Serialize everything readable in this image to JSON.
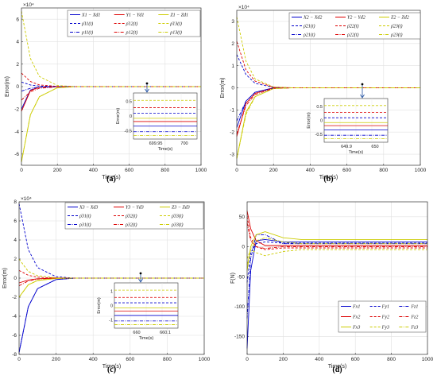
{
  "chart_data": [
    {
      "type": "line",
      "title": "(a)",
      "xlabel": "Time(s)",
      "ylabel": "Error(m)",
      "xlim": [
        0,
        1000
      ],
      "ylim": [
        -70000,
        70000
      ],
      "yexponent": "×10⁴",
      "xticks": [
        0,
        200,
        400,
        600,
        800,
        1000
      ],
      "yticks": [
        -6,
        -4,
        -2,
        0,
        2,
        4,
        6
      ],
      "grid": true,
      "legend_position": "top",
      "series": [
        {
          "name": "X1 − Xd1",
          "color": "#0000cc",
          "style": "solid",
          "x": [
            0,
            50,
            100,
            200,
            300,
            1000
          ],
          "y": [
            -20000,
            -3000,
            -500,
            0,
            0,
            0
          ]
        },
        {
          "name": "Y1 − Yd1",
          "color": "#dd0000",
          "style": "solid",
          "x": [
            0,
            50,
            100,
            200,
            300,
            1000
          ],
          "y": [
            -22000,
            -3500,
            -500,
            0,
            0,
            0
          ]
        },
        {
          "name": "Z1 − Zd1",
          "color": "#cccc00",
          "style": "solid",
          "x": [
            0,
            50,
            100,
            200,
            300,
            1000
          ],
          "y": [
            -67000,
            -25000,
            -9000,
            -1000,
            0,
            0
          ]
        },
        {
          "name": "ρ̄11(t)",
          "color": "#0000cc",
          "style": "dashed",
          "x": [
            0,
            50,
            100,
            200,
            300,
            1000
          ],
          "y": [
            4000,
            1500,
            500,
            0,
            0,
            0
          ]
        },
        {
          "name": "ρ̄12(t)",
          "color": "#dd0000",
          "style": "dashed",
          "x": [
            0,
            50,
            100,
            200,
            300,
            1000
          ],
          "y": [
            12000,
            4500,
            1500,
            200,
            0,
            0
          ]
        },
        {
          "name": "ρ̄13(t)",
          "color": "#cccc00",
          "style": "dashed",
          "x": [
            0,
            50,
            100,
            200,
            300,
            1000
          ],
          "y": [
            67000,
            25000,
            9000,
            1000,
            0,
            0
          ]
        },
        {
          "name": "ρ11(t)",
          "color": "#0000cc",
          "style": "dashdot",
          "x": [
            0,
            50,
            100,
            200,
            300,
            1000
          ],
          "y": [
            -4000,
            -1500,
            -500,
            0,
            0,
            0
          ]
        },
        {
          "name": "ρ12(t)",
          "color": "#dd0000",
          "style": "dashdot",
          "x": [
            0,
            50,
            100,
            200,
            300,
            1000
          ],
          "y": [
            -12000,
            -4500,
            -1500,
            -200,
            0,
            0
          ]
        },
        {
          "name": "ρ13(t)",
          "color": "#cccc00",
          "style": "dashdot",
          "x": [
            0,
            50,
            100,
            200,
            300,
            1000
          ],
          "y": [
            -67000,
            -25000,
            -9000,
            -1000,
            0,
            0
          ]
        }
      ],
      "inset": {
        "ylabel": "Error(m)",
        "xlabel": "Time(s)",
        "xticks": [
          "699.95",
          "700"
        ],
        "yticks": [
          "0.5",
          "0",
          "-0.5"
        ]
      }
    },
    {
      "type": "line",
      "title": "(b)",
      "xlabel": "Time(s)",
      "ylabel": "Error(m)",
      "xlim": [
        0,
        1000
      ],
      "ylim": [
        -35000,
        35000
      ],
      "yexponent": "×10⁴",
      "xticks": [
        0,
        200,
        400,
        600,
        800,
        1000
      ],
      "yticks": [
        -3,
        -2,
        -1,
        0,
        1,
        2,
        3
      ],
      "grid": true,
      "legend_position": "top",
      "series": [
        {
          "name": "X2 − Xd2",
          "color": "#0000cc",
          "style": "solid",
          "x": [
            0,
            50,
            100,
            200,
            300,
            1000
          ],
          "y": [
            -18000,
            -6000,
            -2000,
            0,
            0,
            0
          ]
        },
        {
          "name": "Y2 − Yd2",
          "color": "#dd0000",
          "style": "solid",
          "x": [
            0,
            50,
            100,
            200,
            300,
            1000
          ],
          "y": [
            -22000,
            -7000,
            -2500,
            0,
            0,
            0
          ]
        },
        {
          "name": "Z2 − Zd2",
          "color": "#cccc00",
          "style": "solid",
          "x": [
            0,
            50,
            100,
            200,
            300,
            1000
          ],
          "y": [
            -32000,
            -11000,
            -4000,
            -300,
            0,
            0
          ]
        },
        {
          "name": "ρ̄21(t)",
          "color": "#0000cc",
          "style": "dashed",
          "x": [
            0,
            50,
            100,
            200,
            300,
            1000
          ],
          "y": [
            15000,
            6000,
            2000,
            200,
            0,
            0
          ]
        },
        {
          "name": "ρ̄22(t)",
          "color": "#dd0000",
          "style": "dashed",
          "x": [
            0,
            50,
            100,
            200,
            300,
            1000
          ],
          "y": [
            21000,
            8000,
            3000,
            300,
            0,
            0
          ]
        },
        {
          "name": "ρ̄23(t)",
          "color": "#cccc00",
          "style": "dashed",
          "x": [
            0,
            50,
            100,
            200,
            300,
            1000
          ],
          "y": [
            32000,
            12000,
            4000,
            400,
            0,
            0
          ]
        },
        {
          "name": "ρ21(t)",
          "color": "#0000cc",
          "style": "dashdot",
          "x": [
            0,
            50,
            100,
            200,
            300,
            1000
          ],
          "y": [
            -15000,
            -6000,
            -2000,
            -200,
            0,
            0
          ]
        },
        {
          "name": "ρ22(t)",
          "color": "#dd0000",
          "style": "dashdot",
          "x": [
            0,
            50,
            100,
            200,
            300,
            1000
          ],
          "y": [
            -21000,
            -8000,
            -3000,
            -300,
            0,
            0
          ]
        },
        {
          "name": "ρ23(t)",
          "color": "#cccc00",
          "style": "dashdot",
          "x": [
            0,
            50,
            100,
            200,
            300,
            1000
          ],
          "y": [
            -32000,
            -12000,
            -4000,
            -400,
            0,
            0
          ]
        }
      ],
      "inset": {
        "ylabel": "Error(m)",
        "xlabel": "Time(s)",
        "xticks": [
          "649.9",
          "650"
        ],
        "yticks": [
          "0.5",
          "0",
          "-0.5"
        ]
      }
    },
    {
      "type": "line",
      "title": "(c)",
      "xlabel": "Time(s)",
      "ylabel": "Error(m)",
      "xlim": [
        0,
        1000
      ],
      "ylim": [
        -80000,
        80000
      ],
      "yexponent": "×10⁴",
      "xticks": [
        0,
        200,
        400,
        600,
        800,
        1000
      ],
      "yticks": [
        -8,
        -6,
        -4,
        -2,
        0,
        2,
        4,
        6,
        8
      ],
      "grid": true,
      "legend_position": "top",
      "series": [
        {
          "name": "X3 − Xd3",
          "color": "#0000cc",
          "style": "solid",
          "x": [
            0,
            50,
            100,
            200,
            300,
            1000
          ],
          "y": [
            -78000,
            -30000,
            -11000,
            -1500,
            0,
            0
          ]
        },
        {
          "name": "Y3 − Yd3",
          "color": "#dd0000",
          "style": "solid",
          "x": [
            0,
            50,
            100,
            200,
            300,
            1000
          ],
          "y": [
            -5000,
            -2000,
            -700,
            0,
            0,
            0
          ]
        },
        {
          "name": "Z3 − Zd3",
          "color": "#cccc00",
          "style": "solid",
          "x": [
            0,
            50,
            100,
            200,
            300,
            1000
          ],
          "y": [
            -20000,
            -7000,
            -2500,
            -300,
            0,
            0
          ]
        },
        {
          "name": "ρ̄31(t)",
          "color": "#0000cc",
          "style": "dashed",
          "x": [
            0,
            50,
            100,
            200,
            300,
            1000
          ],
          "y": [
            78000,
            30000,
            11000,
            1500,
            0,
            0
          ]
        },
        {
          "name": "ρ̄32(t)",
          "color": "#dd0000",
          "style": "dashed",
          "x": [
            0,
            50,
            100,
            200,
            300,
            1000
          ],
          "y": [
            8000,
            3000,
            1000,
            100,
            0,
            0
          ]
        },
        {
          "name": "ρ̄33(t)",
          "color": "#cccc00",
          "style": "dashed",
          "x": [
            0,
            50,
            100,
            200,
            300,
            1000
          ],
          "y": [
            20000,
            7000,
            2500,
            300,
            0,
            0
          ]
        },
        {
          "name": "ρ31(t)",
          "color": "#0000cc",
          "style": "dashdot",
          "x": [
            0,
            50,
            100,
            200,
            300,
            1000
          ],
          "y": [
            -78000,
            -30000,
            -11000,
            -1500,
            0,
            0
          ]
        },
        {
          "name": "ρ32(t)",
          "color": "#dd0000",
          "style": "dashdot",
          "x": [
            0,
            50,
            100,
            200,
            300,
            1000
          ],
          "y": [
            -8000,
            -3000,
            -1000,
            -100,
            0,
            0
          ]
        },
        {
          "name": "ρ33(t)",
          "color": "#cccc00",
          "style": "dashdot",
          "x": [
            0,
            50,
            100,
            200,
            300,
            1000
          ],
          "y": [
            -20000,
            -7000,
            -2500,
            -300,
            0,
            0
          ]
        }
      ],
      "inset": {
        "ylabel": "Error(m)",
        "xlabel": "Time(s)",
        "xticks": [
          "660",
          "660.1"
        ],
        "yticks": [
          "1",
          "0",
          "-1"
        ]
      }
    },
    {
      "type": "line",
      "title": "(d)",
      "xlabel": "Time(s)",
      "ylabel": "F(N)",
      "xlim": [
        0,
        1000
      ],
      "ylim": [
        -180,
        75
      ],
      "xticks": [
        0,
        200,
        400,
        600,
        800,
        1000
      ],
      "yticks": [
        -150,
        -100,
        -50,
        0,
        50
      ],
      "grid": true,
      "legend_position": "bottom-right",
      "series": [
        {
          "name": "Fx1",
          "color": "#0000cc",
          "style": "solid",
          "x": [
            0,
            20,
            50,
            100,
            200,
            300,
            1000
          ],
          "y": [
            -170,
            -40,
            10,
            12,
            8,
            8,
            8
          ]
        },
        {
          "name": "Fy1",
          "color": "#0000cc",
          "style": "dashed",
          "x": [
            0,
            20,
            50,
            100,
            200,
            300,
            1000
          ],
          "y": [
            -60,
            -10,
            5,
            8,
            6,
            6,
            6
          ]
        },
        {
          "name": "Fz1",
          "color": "#0000cc",
          "style": "dashdot",
          "x": [
            0,
            20,
            50,
            100,
            200,
            300,
            1000
          ],
          "y": [
            -120,
            -20,
            20,
            20,
            5,
            5,
            5
          ]
        },
        {
          "name": "Fx2",
          "color": "#dd0000",
          "style": "solid",
          "x": [
            0,
            20,
            50,
            100,
            200,
            300,
            1000
          ],
          "y": [
            60,
            30,
            10,
            2,
            2,
            2,
            2
          ]
        },
        {
          "name": "Fy2",
          "color": "#dd0000",
          "style": "dashed",
          "x": [
            0,
            20,
            50,
            100,
            200,
            300,
            1000
          ],
          "y": [
            50,
            15,
            0,
            -5,
            -2,
            -2,
            -2
          ]
        },
        {
          "name": "Fz2",
          "color": "#dd0000",
          "style": "dashdot",
          "x": [
            0,
            20,
            50,
            100,
            200,
            300,
            1000
          ],
          "y": [
            40,
            10,
            0,
            -3,
            0,
            0,
            0
          ]
        },
        {
          "name": "Fx3",
          "color": "#cccc00",
          "style": "solid",
          "x": [
            0,
            20,
            50,
            100,
            200,
            300,
            1000
          ],
          "y": [
            -40,
            0,
            20,
            25,
            15,
            12,
            12
          ]
        },
        {
          "name": "Fy3",
          "color": "#cccc00",
          "style": "dashed",
          "x": [
            0,
            20,
            50,
            100,
            200,
            300,
            1000
          ],
          "y": [
            -20,
            -5,
            -10,
            -15,
            -8,
            -5,
            -5
          ]
        },
        {
          "name": "Fz3",
          "color": "#cccc00",
          "style": "dashdot",
          "x": [
            0,
            20,
            50,
            100,
            200,
            300,
            1000
          ],
          "y": [
            -30,
            -5,
            10,
            15,
            8,
            5,
            5
          ]
        }
      ]
    }
  ]
}
